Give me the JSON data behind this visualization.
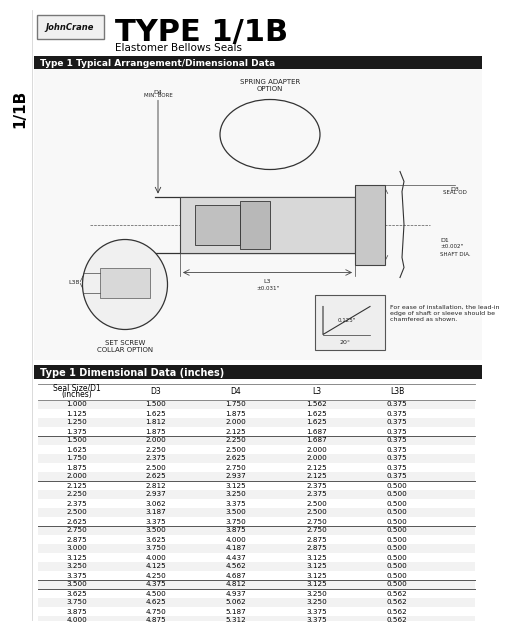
{
  "title": "TYPE 1/1B",
  "subtitle": "Elastomer Bellows Seals",
  "brand": "JohnCrane",
  "side_label": "1/1B",
  "section1_header": "Type 1 Typical Arrangement/Dimensional Data",
  "section2_header": "Type 1 Dimensional Data (inches)",
  "col_headers_row1": [
    "Seal Size/D1",
    "D3",
    "D4",
    "L3",
    "L3B"
  ],
  "col_headers_row2": [
    "(inches)",
    "",
    "",
    "",
    ""
  ],
  "table_data": [
    [
      "1.000",
      "1.500",
      "1.750",
      "1.562",
      "0.375"
    ],
    [
      "1.125",
      "1.625",
      "1.875",
      "1.625",
      "0.375"
    ],
    [
      "1.250",
      "1.812",
      "2.000",
      "1.625",
      "0.375"
    ],
    [
      "1.375",
      "1.875",
      "2.125",
      "1.687",
      "0.375"
    ],
    [
      "1.500",
      "2.000",
      "2.250",
      "1.687",
      "0.375"
    ],
    [
      "1.625",
      "2.250",
      "2.500",
      "2.000",
      "0.375"
    ],
    [
      "1.750",
      "2.375",
      "2.625",
      "2.000",
      "0.375"
    ],
    [
      "1.875",
      "2.500",
      "2.750",
      "2.125",
      "0.375"
    ],
    [
      "2.000",
      "2.625",
      "2.937",
      "2.125",
      "0.375"
    ],
    [
      "2.125",
      "2.812",
      "3.125",
      "2.375",
      "0.500"
    ],
    [
      "2.250",
      "2.937",
      "3.250",
      "2.375",
      "0.500"
    ],
    [
      "2.375",
      "3.062",
      "3.375",
      "2.500",
      "0.500"
    ],
    [
      "2.500",
      "3.187",
      "3.500",
      "2.500",
      "0.500"
    ],
    [
      "2.625",
      "3.375",
      "3.750",
      "2.750",
      "0.500"
    ],
    [
      "2.750",
      "3.500",
      "3.875",
      "2.750",
      "0.500"
    ],
    [
      "2.875",
      "3.625",
      "4.000",
      "2.875",
      "0.500"
    ],
    [
      "3.000",
      "3.750",
      "4.187",
      "2.875",
      "0.500"
    ],
    [
      "3.125",
      "4.000",
      "4.437",
      "3.125",
      "0.500"
    ],
    [
      "3.250",
      "4.125",
      "4.562",
      "3.125",
      "0.500"
    ],
    [
      "3.375",
      "4.250",
      "4.687",
      "3.125",
      "0.500"
    ],
    [
      "3.500",
      "4.375",
      "4.812",
      "3.125",
      "0.500"
    ],
    [
      "3.625",
      "4.500",
      "4.937",
      "3.250",
      "0.562"
    ],
    [
      "3.750",
      "4.625",
      "5.062",
      "3.250",
      "0.562"
    ],
    [
      "3.875",
      "4.750",
      "5.187",
      "3.375",
      "0.562"
    ],
    [
      "4.000",
      "4.875",
      "5.312",
      "3.375",
      "0.562"
    ]
  ],
  "separator_rows": [
    4,
    9,
    14,
    20,
    21
  ],
  "bg_white": "#ffffff",
  "header_bg": "#1a1a1a",
  "header_fg": "#ffffff",
  "text_color": "#000000",
  "line_color": "#888888"
}
